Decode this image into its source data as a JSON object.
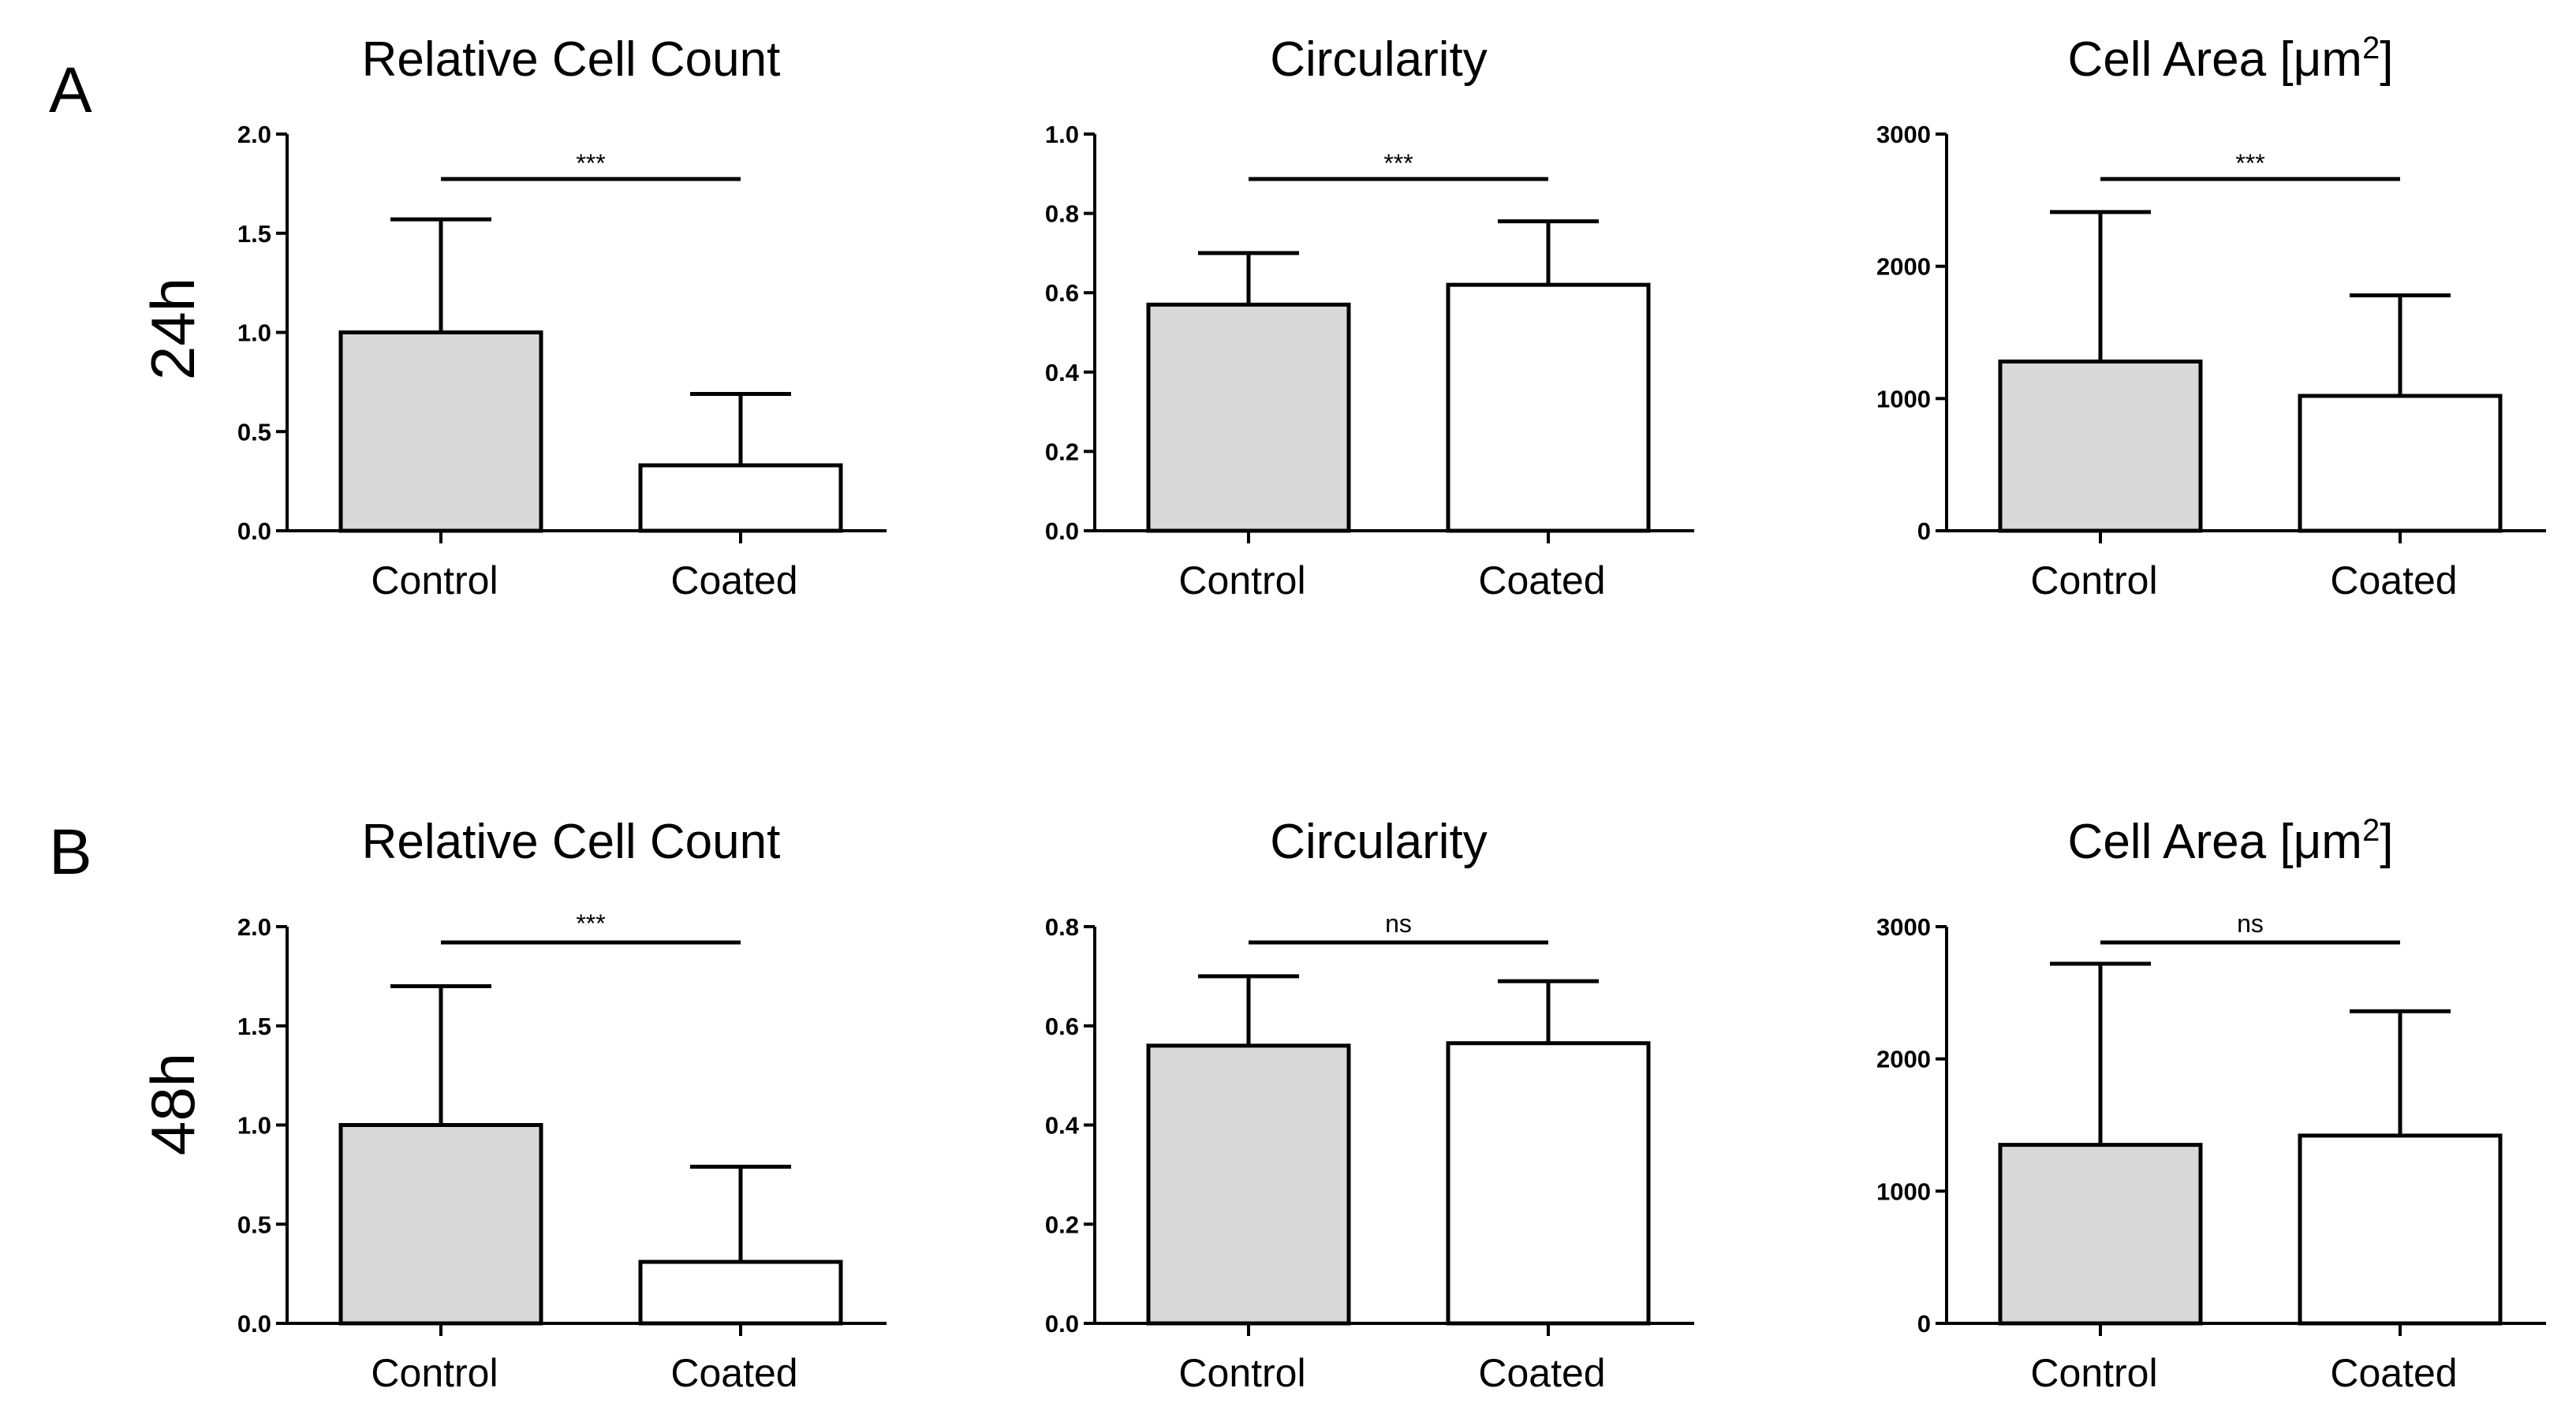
{
  "figure": {
    "panels": [
      {
        "label": "A",
        "row_label": "24h"
      },
      {
        "label": "B",
        "row_label": "48h"
      }
    ]
  },
  "colors": {
    "control": "#d9d9d9",
    "coated": "#ffffff",
    "stroke": "#000000"
  },
  "chart_data": [
    {
      "type": "bar",
      "row": 0,
      "title": "Relative Cell Count",
      "title_sup": "",
      "categories": [
        "Control",
        "Coated"
      ],
      "values": [
        1.0,
        0.33
      ],
      "errors": [
        0.57,
        0.36
      ],
      "ylim": [
        0,
        2.0
      ],
      "yticks": [
        "0.0",
        "0.5",
        "1.0",
        "1.5",
        "2.0"
      ],
      "yticks_values": [
        0,
        0.5,
        1.0,
        1.5,
        2.0
      ],
      "significance": "***",
      "xlabel": "",
      "ylabel": ""
    },
    {
      "type": "bar",
      "row": 0,
      "title": "Circularity",
      "title_sup": "",
      "categories": [
        "Control",
        "Coated"
      ],
      "values": [
        0.57,
        0.62
      ],
      "errors": [
        0.13,
        0.16
      ],
      "ylim": [
        0,
        1.0
      ],
      "yticks": [
        "0.0",
        "0.2",
        "0.4",
        "0.6",
        "0.8",
        "1.0"
      ],
      "yticks_values": [
        0,
        0.2,
        0.4,
        0.6,
        0.8,
        1.0
      ],
      "significance": "***",
      "xlabel": "",
      "ylabel": ""
    },
    {
      "type": "bar",
      "row": 0,
      "title": "Cell Area [μm",
      "title_sup": "2",
      "title_end": "]",
      "categories": [
        "Control",
        "Coated"
      ],
      "values": [
        1280,
        1020
      ],
      "errors": [
        1130,
        760
      ],
      "ylim": [
        0,
        3000
      ],
      "yticks": [
        "0",
        "1000",
        "2000",
        "3000"
      ],
      "yticks_values": [
        0,
        1000,
        2000,
        3000
      ],
      "significance": "***",
      "xlabel": "",
      "ylabel": ""
    },
    {
      "type": "bar",
      "row": 1,
      "title": "Relative Cell Count",
      "title_sup": "",
      "categories": [
        "Control",
        "Coated"
      ],
      "values": [
        1.0,
        0.31
      ],
      "errors": [
        0.7,
        0.48
      ],
      "ylim": [
        0,
        2.0
      ],
      "yticks": [
        "0.0",
        "0.5",
        "1.0",
        "1.5",
        "2.0"
      ],
      "yticks_values": [
        0,
        0.5,
        1.0,
        1.5,
        2.0
      ],
      "significance": "***",
      "xlabel": "",
      "ylabel": ""
    },
    {
      "type": "bar",
      "row": 1,
      "title": "Circularity",
      "title_sup": "",
      "categories": [
        "Control",
        "Coated"
      ],
      "values": [
        0.56,
        0.565
      ],
      "errors": [
        0.14,
        0.125
      ],
      "ylim": [
        0,
        0.8
      ],
      "yticks": [
        "0.0",
        "0.2",
        "0.4",
        "0.6",
        "0.8"
      ],
      "yticks_values": [
        0,
        0.2,
        0.4,
        0.6,
        0.8
      ],
      "significance": "ns",
      "xlabel": "",
      "ylabel": ""
    },
    {
      "type": "bar",
      "row": 1,
      "title": "Cell Area [μm",
      "title_sup": "2",
      "title_end": "]",
      "categories": [
        "Control",
        "Coated"
      ],
      "values": [
        1350,
        1420
      ],
      "errors": [
        1370,
        940
      ],
      "ylim": [
        0,
        3000
      ],
      "yticks": [
        "0",
        "1000",
        "2000",
        "3000"
      ],
      "yticks_values": [
        0,
        1000,
        2000,
        3000
      ],
      "significance": "ns",
      "xlabel": "",
      "ylabel": ""
    }
  ]
}
